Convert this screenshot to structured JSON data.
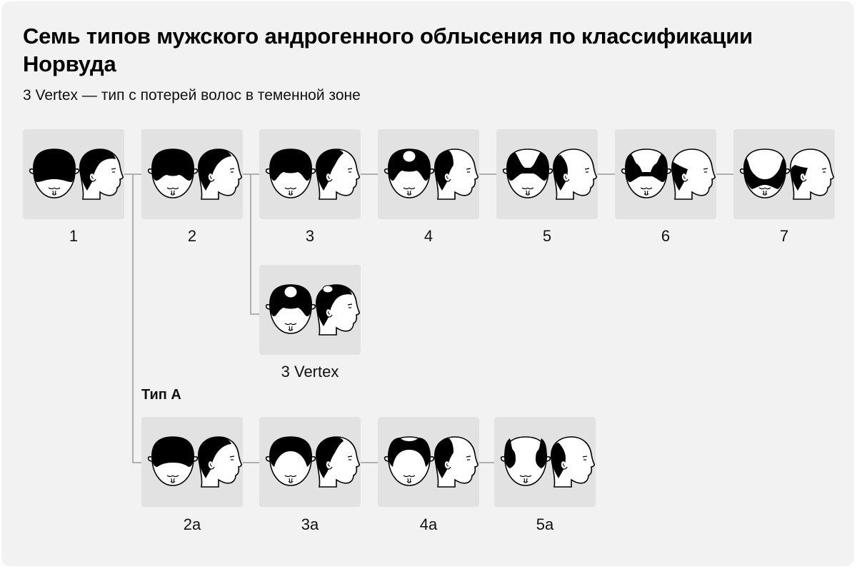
{
  "title": "Семь типов мужского андрогенного облысения по классификации Норвуда",
  "subtitle": "3 Vertex — тип с потерей волос в теменной зоне",
  "type_a_heading": "Тип А",
  "colors": {
    "background": "#f2f2f2",
    "tile": "#e2e2e2",
    "hair": "#000000",
    "skin": "#ffffff",
    "connector": "#9a9a9a"
  },
  "stages": [
    {
      "id": "1",
      "label": "1"
    },
    {
      "id": "2",
      "label": "2"
    },
    {
      "id": "3",
      "label": "3"
    },
    {
      "id": "4",
      "label": "4"
    },
    {
      "id": "5",
      "label": "5"
    },
    {
      "id": "6",
      "label": "6"
    },
    {
      "id": "7",
      "label": "7"
    },
    {
      "id": "3v",
      "label": "3 Vertex"
    },
    {
      "id": "2a",
      "label": "2a"
    },
    {
      "id": "3a",
      "label": "3a"
    },
    {
      "id": "4a",
      "label": "4a"
    },
    {
      "id": "5a",
      "label": "5a"
    }
  ]
}
